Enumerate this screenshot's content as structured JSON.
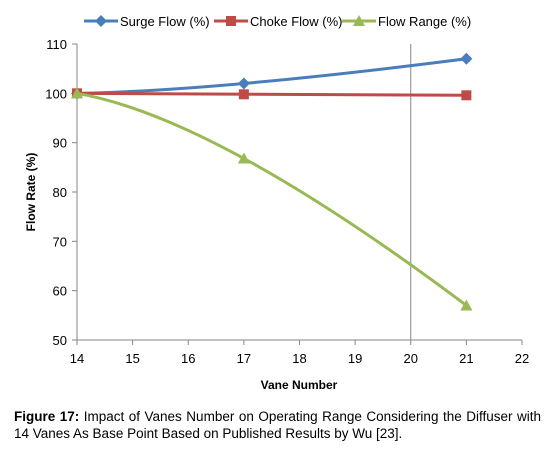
{
  "chart_data": {
    "type": "line",
    "xlabel": "Vane Number",
    "ylabel": "Flow Rate (%)",
    "xlim": [
      14,
      22
    ],
    "ylim": [
      50,
      110
    ],
    "xticks": [
      14,
      15,
      16,
      17,
      18,
      19,
      20,
      21,
      22
    ],
    "yticks": [
      50,
      60,
      70,
      80,
      90,
      100,
      110
    ],
    "grid": "vertical line at x=20 only",
    "legend_position": "top",
    "series": [
      {
        "name": "Surge Flow (%)",
        "color": "#4a7ebb",
        "marker": "diamond",
        "x": [
          14,
          17,
          21
        ],
        "y": [
          100,
          102,
          107
        ]
      },
      {
        "name": "Choke Flow (%)",
        "color": "#be4b48",
        "marker": "square",
        "x": [
          14,
          17,
          21
        ],
        "y": [
          100,
          99.8,
          99.6
        ]
      },
      {
        "name": "Flow Range (%)",
        "color": "#98b954",
        "marker": "triangle",
        "x": [
          14,
          17,
          21
        ],
        "y": [
          100,
          86.8,
          57
        ]
      }
    ]
  },
  "caption": {
    "label": "Figure 17:",
    "text": " Impact of Vanes Number on Operating Range Considering the Diffuser with 14 Vanes As Base Point Based on Published Results by Wu [23]."
  }
}
